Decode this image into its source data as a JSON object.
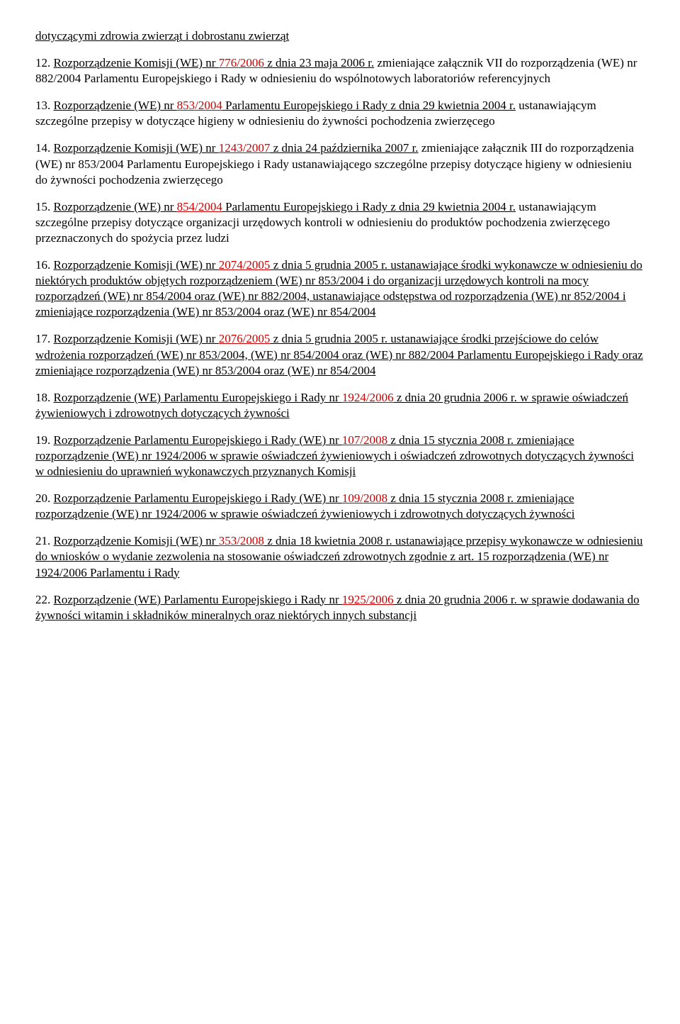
{
  "entries": [
    {
      "num": "",
      "parts": [
        {
          "t": "dotyczącymi zdrowia zwierząt i dobrostanu zwierząt",
          "u": true
        }
      ]
    },
    {
      "num": "12. ",
      "parts": [
        {
          "t": "Rozporządzenie Komisji (WE) nr ",
          "u": true
        },
        {
          "t": "776/2006",
          "u": true,
          "red": true
        },
        {
          "t": " z dnia 23 maja 2006 r.",
          "u": true
        },
        {
          "t": " zmieniające załącznik VII do rozporządzenia (WE) nr 882/2004 Parlamentu Europejskiego i Rady w odniesieniu do wspólnotowych laboratoriów referencyjnych"
        }
      ]
    },
    {
      "num": "13. ",
      "parts": [
        {
          "t": "Rozporządzenie (WE) nr ",
          "u": true
        },
        {
          "t": "853/2004",
          "u": true,
          "red": true
        },
        {
          "t": " Parlamentu Europejskiego i Rady z dnia 29 kwietnia 2004 r.",
          "u": true
        },
        {
          "t": " ustanawiającym szczególne przepisy w dotyczące higieny w odniesieniu do żywności pochodzenia zwierzęcego"
        }
      ]
    },
    {
      "num": "14. ",
      "parts": [
        {
          "t": "Rozporządzenie Komisji (WE) nr ",
          "u": true
        },
        {
          "t": "1243/2007",
          "u": true,
          "red": true
        },
        {
          "t": " z dnia 24 października 2007 r.",
          "u": true
        },
        {
          "t": " zmieniające załącznik III do rozporządzenia (WE) nr 853/2004 Parlamentu Europejskiego i Rady ustanawiającego szczególne przepisy dotyczące higieny w odniesieniu do żywności pochodzenia zwierzęcego"
        }
      ]
    },
    {
      "num": "15. ",
      "parts": [
        {
          "t": "Rozporządzenie (WE) nr ",
          "u": true
        },
        {
          "t": "854/2004",
          "u": true,
          "red": true
        },
        {
          "t": " Parlamentu Europejskiego i Rady z dnia 29 kwietnia 2004 r.",
          "u": true
        },
        {
          "t": " ustanawiającym szczególne przepisy dotyczące organizacji urzędowych kontroli w odniesieniu do produktów pochodzenia zwierzęcego przeznaczonych do spożycia przez ludzi"
        }
      ]
    },
    {
      "num": "16. ",
      "parts": [
        {
          "t": "Rozporządzenie Komisji (WE) nr ",
          "u": true
        },
        {
          "t": "2074/2005",
          "u": true,
          "red": true
        },
        {
          "t": " z dnia 5 grudnia 2005 r.",
          "u": true
        },
        {
          "t": " ustanawiające środki wykonawcze w odniesieniu do niektórych produktów objętych rozporządzeniem (WE) nr 853/2004 i do organizacji urzędowych kontroli na mocy rozporządzeń (WE) nr 854/2004 oraz (WE) nr 882/2004, ustanawiające odstępstwa od rozporządzenia (WE) nr 852/2004 i zmieniające rozporządzenia (WE) nr 853/2004 oraz (WE) nr 854/2004",
          "u": true
        }
      ]
    },
    {
      "num": "17. ",
      "parts": [
        {
          "t": "Rozporządzenie Komisji (WE) nr ",
          "u": true
        },
        {
          "t": "2076/2005",
          "u": true,
          "red": true
        },
        {
          "t": " z dnia 5 grudnia 2005 r.",
          "u": true
        },
        {
          "t": " ustanawiające środki przejściowe do celów wdrożenia rozporządzeń (WE) nr 853/2004, (WE) nr 854/2004 oraz (WE) nr 882/2004 Parlamentu Europejskiego i Rady oraz zmieniające rozporządzenia (WE) nr 853/2004 oraz (WE) nr 854/2004",
          "u": true
        }
      ]
    },
    {
      "num": "18. ",
      "parts": [
        {
          "t": "Rozporządzenie (WE) Parlamentu Europejskiego i Rady nr ",
          "u": true
        },
        {
          "t": "1924/2006",
          "u": true,
          "red": true
        },
        {
          "t": " z dnia 20 grudnia 2006 r.",
          "u": true
        },
        {
          "t": " w sprawie oświadczeń żywieniowych i zdrowotnych dotyczących żywności",
          "u": true
        }
      ]
    },
    {
      "num": "19. ",
      "parts": [
        {
          "t": "Rozporządzenie Parlamentu Europejskiego i Rady (WE) nr ",
          "u": true
        },
        {
          "t": "107/2008",
          "u": true,
          "red": true
        },
        {
          "t": " z dnia 15 stycznia 2008 r.",
          "u": true
        },
        {
          "t": " zmieniające rozporządzenie (WE) nr 1924/2006 w sprawie oświadczeń żywieniowych i oświadczeń zdrowotnych dotyczących żywności w odniesieniu do uprawnień wykonawczych przyznanych Komisji",
          "u": true
        }
      ]
    },
    {
      "num": "20. ",
      "parts": [
        {
          "t": "Rozporządzenie Parlamentu Europejskiego i Rady (WE) nr ",
          "u": true
        },
        {
          "t": "109/2008",
          "u": true,
          "red": true
        },
        {
          "t": " z dnia 15 stycznia 2008 r.",
          "u": true
        },
        {
          "t": " zmieniające rozporządzenie (WE) nr 1924/2006 w sprawie oświadczeń żywieniowych i zdrowotnych dotyczących żywności",
          "u": true
        }
      ]
    },
    {
      "num": "21. ",
      "parts": [
        {
          "t": "Rozporządzenie Komisji (WE) nr ",
          "u": true
        },
        {
          "t": "353/2008",
          "u": true,
          "red": true
        },
        {
          "t": " z dnia 18 kwietnia 2008 r.",
          "u": true
        },
        {
          "t": " ustanawiające przepisy wykonawcze w odniesieniu do wniosków o wydanie zezwolenia na stosowanie oświadczeń zdrowotnych zgodnie z art.",
          "u": true
        },
        {
          "t": " 15 rozporządzenia (WE) nr 1924/2006 Parlamentu i Rady",
          "u": true
        }
      ]
    },
    {
      "num": "22. ",
      "parts": [
        {
          "t": "Rozporządzenie (WE) Parlamentu Europejskiego i Rady nr ",
          "u": true
        },
        {
          "t": "1925/2006",
          "u": true,
          "red": true
        },
        {
          "t": " z dnia 20 grudnia 2006 r.",
          "u": true
        },
        {
          "t": " w sprawie dodawania do żywności witamin i składników mineralnych oraz niektórych innych substancji",
          "u": true
        }
      ]
    }
  ]
}
